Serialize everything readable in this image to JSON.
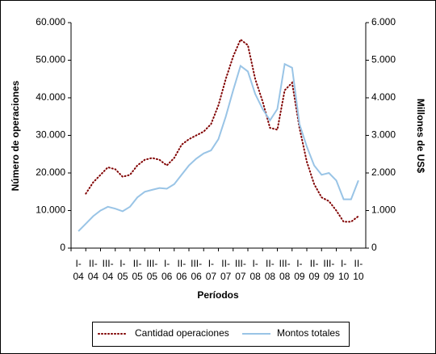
{
  "chart_data": {
    "type": "line",
    "x_label": "Períodos",
    "y_label": "Número de operaciones",
    "y2_label": "Millones de US$",
    "categories": [
      "I-\n04",
      null,
      "II-\n04",
      null,
      "III-\n04",
      null,
      "I-\n05",
      null,
      "II-\n05",
      null,
      "III-\n05",
      null,
      "I-\n06",
      null,
      "II-\n06",
      null,
      "III-\n06",
      null,
      "I-\n07",
      null,
      "II-\n07",
      null,
      "III-\n07",
      null,
      "I-\n08",
      null,
      "II-\n08",
      null,
      "III-\n08",
      null,
      "I-\n09",
      null,
      "II-\n09",
      null,
      "III-\n09",
      null,
      "I-\n10",
      null,
      "II-\n10"
    ],
    "series": [
      {
        "name": "Cantidad operaciones",
        "color": "#800000",
        "dash": "dotted",
        "axis": "y",
        "values": [
          null,
          14500,
          17500,
          19500,
          21500,
          21000,
          19000,
          19500,
          22000,
          23500,
          24000,
          23500,
          22000,
          24000,
          27500,
          29000,
          30000,
          31000,
          33000,
          38000,
          45000,
          51000,
          55500,
          54000,
          45000,
          39000,
          32000,
          31500,
          42000,
          44000,
          32000,
          23000,
          17000,
          13500,
          12500,
          10000,
          7000,
          7000,
          8500
        ]
      },
      {
        "name": "Montos totales",
        "color": "#99c4e6",
        "axis": "y2",
        "values": [
          450,
          650,
          850,
          1000,
          1100,
          1050,
          980,
          1100,
          1350,
          1500,
          1550,
          1600,
          1580,
          1700,
          1950,
          2200,
          2380,
          2520,
          2600,
          2900,
          3500,
          4200,
          4850,
          4700,
          4100,
          3700,
          3400,
          3700,
          4900,
          4800,
          3300,
          2700,
          2200,
          1950,
          2000,
          1800,
          1300,
          1300,
          1800
        ]
      }
    ],
    "ylim": [
      0,
      60000
    ],
    "yticks": [
      0,
      {
        "value": 10000,
        "label": "10.000"
      },
      {
        "value": 20000,
        "label": "20.000"
      },
      {
        "value": 30000,
        "label": "30.000"
      },
      {
        "value": 40000,
        "label": "40.000"
      },
      {
        "value": 50000,
        "label": "50.000"
      },
      {
        "value": 60000,
        "label": "60.000"
      }
    ],
    "y2lim": [
      0,
      6000
    ],
    "y2ticks": [
      0,
      {
        "value": 1000,
        "label": "1.000"
      },
      {
        "value": 2000,
        "label": "2.000"
      },
      {
        "value": 3000,
        "label": "3.000"
      },
      {
        "value": 4000,
        "label": "4.000"
      },
      {
        "value": 5000,
        "label": "5.000"
      },
      {
        "value": 6000,
        "label": "6.000"
      }
    ],
    "legend": "bottom"
  }
}
